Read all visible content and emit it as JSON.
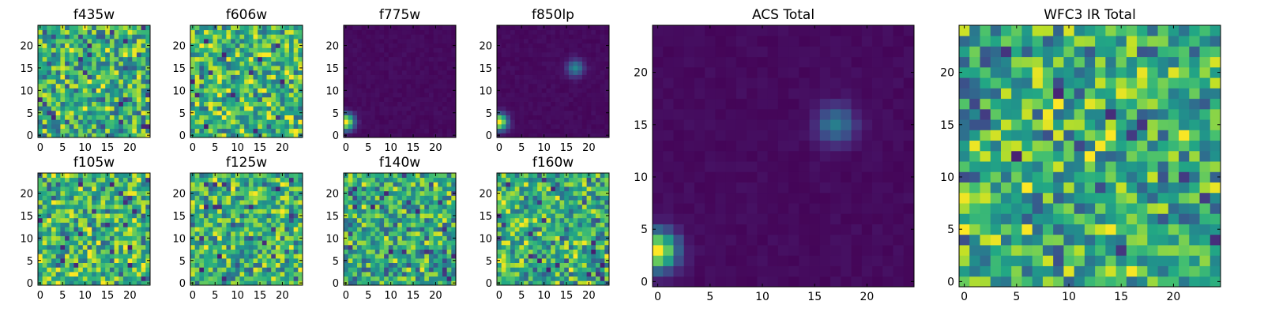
{
  "chart_data": [
    {
      "type": "heatmap",
      "title": "f435w",
      "grid": false,
      "xlim": [
        -0.5,
        24.5
      ],
      "ylim": [
        -0.5,
        24.5
      ],
      "x_ticks": [
        "0",
        "5",
        "10",
        "15",
        "20"
      ],
      "y_ticks": [
        "0",
        "5",
        "10",
        "15",
        "20"
      ],
      "colormap": "viridis",
      "pattern": "noise",
      "mean_level": 0.62
    },
    {
      "type": "heatmap",
      "title": "f606w",
      "grid": false,
      "xlim": [
        -0.5,
        24.5
      ],
      "ylim": [
        -0.5,
        24.5
      ],
      "x_ticks": [
        "0",
        "5",
        "10",
        "15",
        "20"
      ],
      "y_ticks": [
        "0",
        "5",
        "10",
        "15",
        "20"
      ],
      "colormap": "viridis",
      "pattern": "noise",
      "mean_level": 0.68
    },
    {
      "type": "heatmap",
      "title": "f775w",
      "grid": false,
      "xlim": [
        -0.5,
        24.5
      ],
      "ylim": [
        -0.5,
        24.5
      ],
      "x_ticks": [
        "0",
        "5",
        "10",
        "15",
        "20"
      ],
      "y_ticks": [
        "0",
        "5",
        "10",
        "15",
        "20"
      ],
      "colormap": "viridis",
      "pattern": "source",
      "sources": [
        {
          "x": 0,
          "y": 3,
          "peak": 1.0
        }
      ]
    },
    {
      "type": "heatmap",
      "title": "f850lp",
      "grid": false,
      "xlim": [
        -0.5,
        24.5
      ],
      "ylim": [
        -0.5,
        24.5
      ],
      "x_ticks": [
        "0",
        "5",
        "10",
        "15",
        "20"
      ],
      "y_ticks": [
        "0",
        "5",
        "10",
        "15",
        "20"
      ],
      "colormap": "viridis",
      "pattern": "source",
      "sources": [
        {
          "x": 0,
          "y": 3,
          "peak": 1.0
        },
        {
          "x": 17,
          "y": 15,
          "peak": 0.45
        }
      ]
    },
    {
      "type": "heatmap",
      "title": "ACS Total",
      "grid": false,
      "xlim": [
        -0.5,
        24.5
      ],
      "ylim": [
        -0.5,
        24.5
      ],
      "x_ticks": [
        "0",
        "5",
        "10",
        "15",
        "20"
      ],
      "y_ticks": [
        "0",
        "5",
        "10",
        "15",
        "20"
      ],
      "colormap": "viridis",
      "pattern": "source",
      "sources": [
        {
          "x": 0,
          "y": 3,
          "peak": 1.0
        },
        {
          "x": 17,
          "y": 15,
          "peak": 0.4
        }
      ]
    },
    {
      "type": "heatmap",
      "title": "WFC3 IR Total",
      "grid": false,
      "xlim": [
        -0.5,
        24.5
      ],
      "ylim": [
        -0.5,
        24.5
      ],
      "x_ticks": [
        "0",
        "5",
        "10",
        "15",
        "20"
      ],
      "y_ticks": [
        "0",
        "5",
        "10",
        "15",
        "20"
      ],
      "colormap": "viridis",
      "pattern": "noise",
      "mean_level": 0.62
    },
    {
      "type": "heatmap",
      "title": "f105w",
      "grid": false,
      "xlim": [
        -0.5,
        24.5
      ],
      "ylim": [
        -0.5,
        24.5
      ],
      "x_ticks": [
        "0",
        "5",
        "10",
        "15",
        "20"
      ],
      "y_ticks": [
        "0",
        "5",
        "10",
        "15",
        "20"
      ],
      "colormap": "viridis",
      "pattern": "noise",
      "mean_level": 0.66
    },
    {
      "type": "heatmap",
      "title": "f125w",
      "grid": false,
      "xlim": [
        -0.5,
        24.5
      ],
      "ylim": [
        -0.5,
        24.5
      ],
      "x_ticks": [
        "0",
        "5",
        "10",
        "15",
        "20"
      ],
      "y_ticks": [
        "0",
        "5",
        "10",
        "15",
        "20"
      ],
      "colormap": "viridis",
      "pattern": "noise",
      "mean_level": 0.64
    },
    {
      "type": "heatmap",
      "title": "f140w",
      "grid": false,
      "xlim": [
        -0.5,
        24.5
      ],
      "ylim": [
        -0.5,
        24.5
      ],
      "x_ticks": [
        "0",
        "5",
        "10",
        "15",
        "20"
      ],
      "y_ticks": [
        "0",
        "5",
        "10",
        "15",
        "20"
      ],
      "colormap": "viridis",
      "pattern": "noise",
      "mean_level": 0.6
    },
    {
      "type": "heatmap",
      "title": "f160w",
      "grid": false,
      "xlim": [
        -0.5,
        24.5
      ],
      "ylim": [
        -0.5,
        24.5
      ],
      "x_ticks": [
        "0",
        "5",
        "10",
        "15",
        "20"
      ],
      "y_ticks": [
        "0",
        "5",
        "10",
        "15",
        "20"
      ],
      "colormap": "viridis",
      "pattern": "noise",
      "mean_level": 0.63
    }
  ]
}
